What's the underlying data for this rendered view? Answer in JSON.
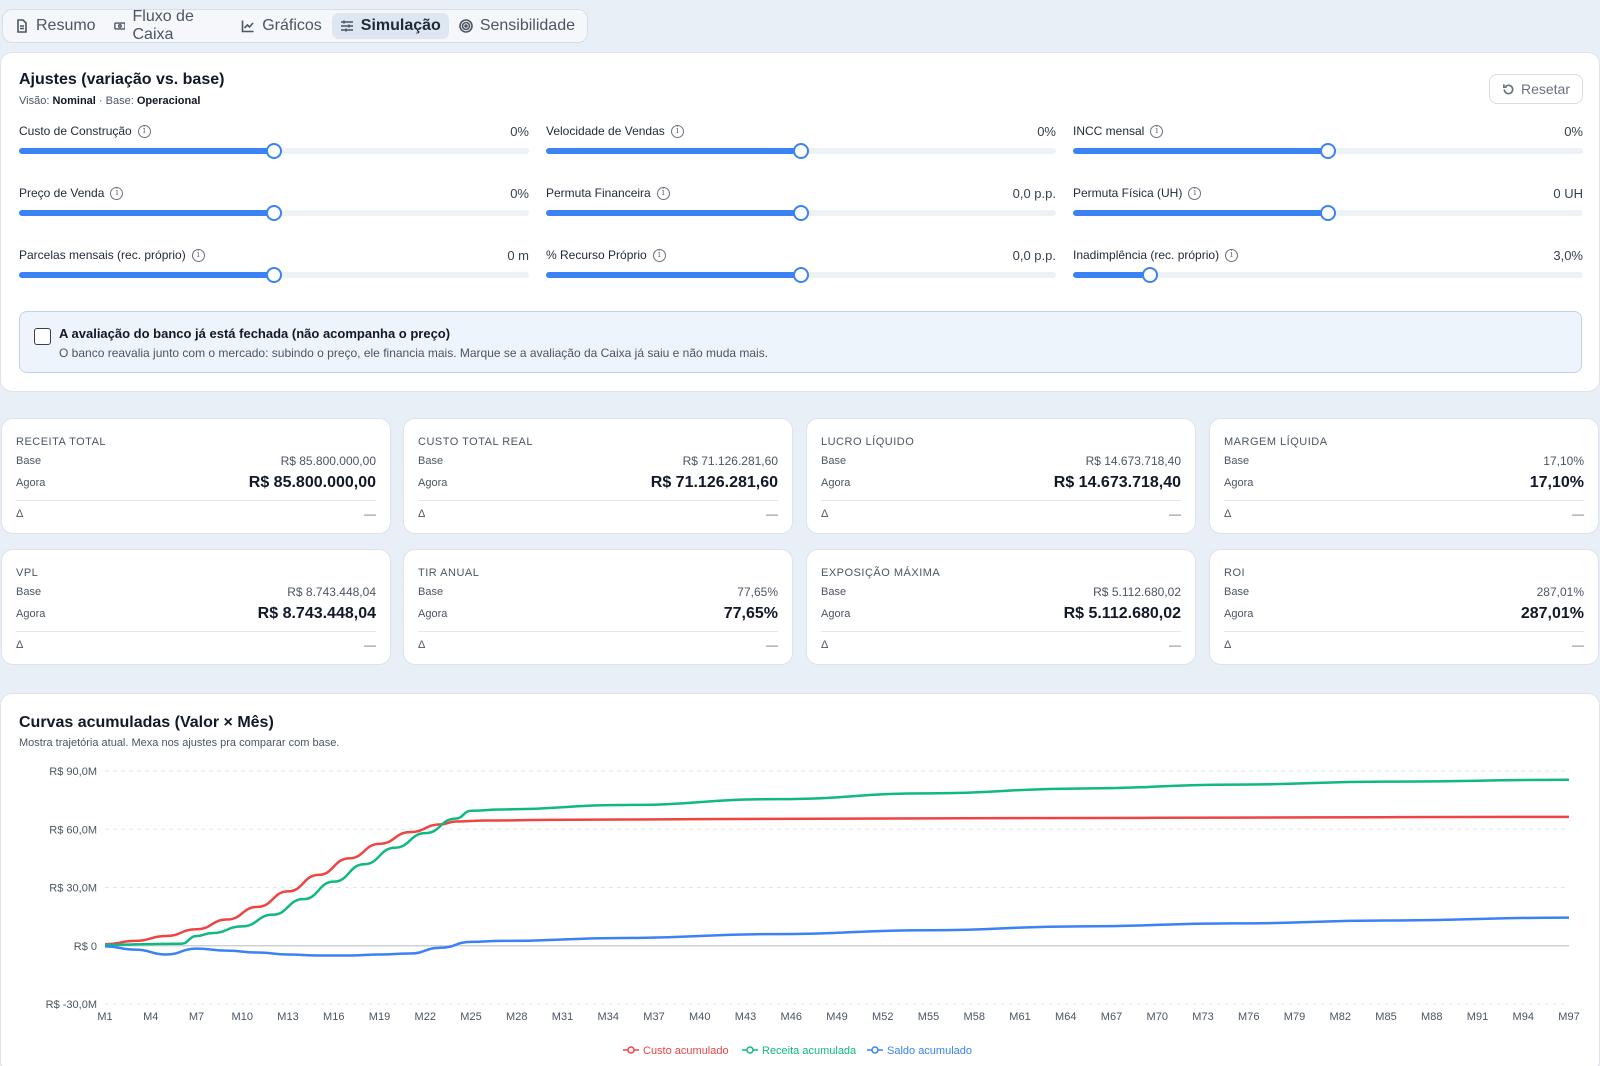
{
  "tabs": [
    {
      "label": "Resumo",
      "icon": "document-icon"
    },
    {
      "label": "Fluxo de Caixa",
      "icon": "cash-icon"
    },
    {
      "label": "Gráficos",
      "icon": "line-chart-icon"
    },
    {
      "label": "Simulação",
      "icon": "sliders-icon",
      "active": true
    },
    {
      "label": "Sensibilidade",
      "icon": "target-icon"
    }
  ],
  "adjustments": {
    "title": "Ajustes (variação vs. base)",
    "view_label": "Visão:",
    "view_value": "Nominal",
    "separator": " · ",
    "base_label": "Base:",
    "base_value": "Operacional",
    "reset_label": "Resetar",
    "sliders": [
      {
        "label": "Custo de Construção",
        "value": "0%",
        "level": 0.5
      },
      {
        "label": "Velocidade de Vendas",
        "value": "0%",
        "level": 0.5
      },
      {
        "label": "INCC mensal",
        "value": "0%",
        "level": 0.5
      },
      {
        "label": "Preço de Venda",
        "value": "0%",
        "level": 0.5
      },
      {
        "label": "Permuta Financeira",
        "value": "0,0 p.p.",
        "level": 0.5
      },
      {
        "label": "Permuta Física (UH)",
        "value": "0 UH",
        "level": 0.5
      },
      {
        "label": "Parcelas mensais (rec. próprio)",
        "value": "0 m",
        "level": 0.5
      },
      {
        "label": "% Recurso Próprio",
        "value": "0,0 p.p.",
        "level": 0.5
      },
      {
        "label": "Inadimplência (rec. próprio)",
        "value": "3,0%",
        "level": 0.15
      }
    ],
    "notice": {
      "checked": false,
      "title": "A avaliação do banco já está fechada (não acompanha o preço)",
      "description": "O banco reavalia junto com o mercado: subindo o preço, ele financia mais. Marque se a avaliação da Caixa já saiu e não muda mais."
    }
  },
  "metrics": [
    {
      "title": "RECEITA TOTAL",
      "base_label": "Base",
      "base": "R$ 85.800.000,00",
      "now_label": "Agora",
      "now": "R$ 85.800.000,00",
      "delta_label": "Δ",
      "delta": "—"
    },
    {
      "title": "CUSTO TOTAL REAL",
      "base_label": "Base",
      "base": "R$ 71.126.281,60",
      "now_label": "Agora",
      "now": "R$ 71.126.281,60",
      "delta_label": "Δ",
      "delta": "—"
    },
    {
      "title": "LUCRO LÍQUIDO",
      "base_label": "Base",
      "base": "R$ 14.673.718,40",
      "now_label": "Agora",
      "now": "R$ 14.673.718,40",
      "delta_label": "Δ",
      "delta": "—"
    },
    {
      "title": "MARGEM LÍQUIDA",
      "base_label": "Base",
      "base": "17,10%",
      "now_label": "Agora",
      "now": "17,10%",
      "delta_label": "Δ",
      "delta": "—"
    },
    {
      "title": "VPL",
      "base_label": "Base",
      "base": "R$ 8.743.448,04",
      "now_label": "Agora",
      "now": "R$ 8.743.448,04",
      "delta_label": "Δ",
      "delta": "—"
    },
    {
      "title": "TIR ANUAL",
      "base_label": "Base",
      "base": "77,65%",
      "now_label": "Agora",
      "now": "77,65%",
      "delta_label": "Δ",
      "delta": "—"
    },
    {
      "title": "EXPOSIÇÃO MÁXIMA",
      "base_label": "Base",
      "base": "R$ 5.112.680,02",
      "now_label": "Agora",
      "now": "R$ 5.112.680,02",
      "delta_label": "Δ",
      "delta": "—"
    },
    {
      "title": "ROI",
      "base_label": "Base",
      "base": "287,01%",
      "now_label": "Agora",
      "now": "287,01%",
      "delta_label": "Δ",
      "delta": "—"
    }
  ],
  "chart_panel": {
    "title": "Curvas acumuladas (Valor × Mês)",
    "subtitle": "Mostra trajetória atual. Mexa nos ajustes pra comparar com base."
  },
  "chart_data": {
    "type": "line",
    "x_ticks": [
      "M1",
      "M4",
      "M7",
      "M10",
      "M13",
      "M16",
      "M19",
      "M22",
      "M25",
      "M28",
      "M31",
      "M34",
      "M37",
      "M40",
      "M43",
      "M46",
      "M49",
      "M52",
      "M55",
      "M58",
      "M61",
      "M64",
      "M67",
      "M70",
      "M73",
      "M76",
      "M79",
      "M82",
      "M85",
      "M88",
      "M91",
      "M94",
      "M97"
    ],
    "x_range": [
      1,
      97
    ],
    "y_ticks": [
      {
        "value": 90,
        "label": "R$ 90,0M"
      },
      {
        "value": 60,
        "label": "R$ 60,0M"
      },
      {
        "value": 30,
        "label": "R$ 30,0M"
      },
      {
        "value": 0,
        "label": "R$ 0"
      },
      {
        "value": -30,
        "label": "R$ -30,0M"
      }
    ],
    "ylim": [
      -30,
      90
    ],
    "y_unit": "R$ milhões",
    "grid": "horizontal-dashed",
    "legend_position": "bottom-center",
    "series": [
      {
        "name": "Custo acumulado",
        "color": "#ef4444",
        "points": [
          [
            1,
            0.8
          ],
          [
            3,
            2.5
          ],
          [
            5,
            5
          ],
          [
            7,
            8.5
          ],
          [
            9,
            13.5
          ],
          [
            11,
            20
          ],
          [
            13,
            28
          ],
          [
            15,
            36.5
          ],
          [
            17,
            45
          ],
          [
            19,
            52.5
          ],
          [
            21,
            58.5
          ],
          [
            23,
            62.5
          ],
          [
            24,
            64
          ],
          [
            26,
            64.5
          ],
          [
            30,
            64.8
          ],
          [
            40,
            65.2
          ],
          [
            50,
            65.5
          ],
          [
            60,
            65.7
          ],
          [
            70,
            65.9
          ],
          [
            80,
            66.1
          ],
          [
            90,
            66.3
          ],
          [
            97,
            66.4
          ]
        ]
      },
      {
        "name": "Receita acumulada",
        "color": "#10b981",
        "points": [
          [
            1,
            0.5
          ],
          [
            6,
            1
          ],
          [
            7,
            5
          ],
          [
            8,
            6.5
          ],
          [
            10,
            10
          ],
          [
            12,
            16
          ],
          [
            14,
            24
          ],
          [
            16,
            33
          ],
          [
            18,
            42
          ],
          [
            20,
            50.5
          ],
          [
            22,
            58
          ],
          [
            24,
            65.5
          ],
          [
            25,
            69.5
          ],
          [
            27,
            70.2
          ],
          [
            35,
            72.5
          ],
          [
            45,
            75.5
          ],
          [
            55,
            78.5
          ],
          [
            65,
            81
          ],
          [
            75,
            83
          ],
          [
            85,
            84.5
          ],
          [
            97,
            85.5
          ]
        ]
      },
      {
        "name": "Saldo acumulado",
        "color": "#3b82f6",
        "points": [
          [
            1,
            -0.3
          ],
          [
            3,
            -2
          ],
          [
            5,
            -4.5
          ],
          [
            7,
            -1.5
          ],
          [
            9,
            -2.5
          ],
          [
            11,
            -3.5
          ],
          [
            13,
            -4.5
          ],
          [
            15,
            -5
          ],
          [
            17,
            -5
          ],
          [
            19,
            -4.5
          ],
          [
            21,
            -4
          ],
          [
            23,
            -1
          ],
          [
            25,
            2
          ],
          [
            27,
            2.5
          ],
          [
            35,
            4
          ],
          [
            45,
            6
          ],
          [
            55,
            8
          ],
          [
            65,
            10
          ],
          [
            75,
            11.5
          ],
          [
            85,
            13
          ],
          [
            97,
            14.5
          ]
        ]
      }
    ]
  }
}
